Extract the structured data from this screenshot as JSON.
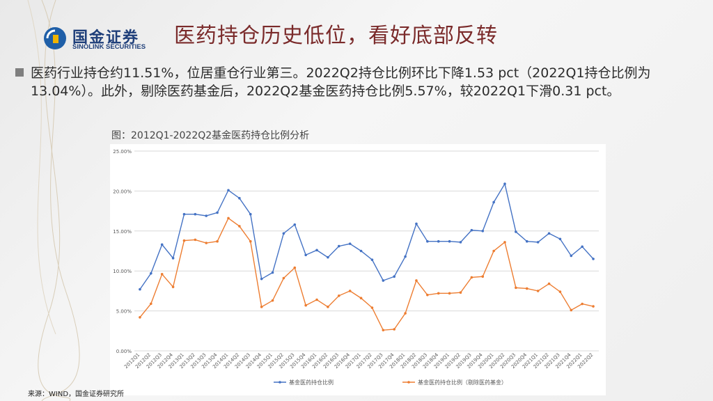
{
  "brand": {
    "name_cn": "国金证券",
    "name_en": "SINOLINK SECURITIES"
  },
  "page": {
    "title": "医药持仓历史低位，看好底部反转",
    "bullet": "医药行业持仓约11.51%，位居重仓行业第三。2022Q2持仓比例环比下降1.53 pct（2022Q1持仓比例为13.04%）。此外，剔除医药基金后，2022Q2基金医药持仓比例5.57%，较2022Q1下滑0.31 pct。",
    "figure_caption": "图：2012Q1-2022Q2基金医药持仓比例分析",
    "source": "来源：WIND，国金证券研究所"
  },
  "colors": {
    "title": "#7a2a2a",
    "series1": "#4472c4",
    "series2": "#ed7d31",
    "grid": "#d9d9d9"
  },
  "chart_data": {
    "type": "line",
    "title": "",
    "xlabel": "",
    "ylabel": "",
    "ylim": [
      0,
      25
    ],
    "yticks": [
      "0.00%",
      "5.00%",
      "10.00%",
      "15.00%",
      "20.00%",
      "25.00%"
    ],
    "grid": true,
    "legend_position": "bottom",
    "categories": [
      "2012Q1",
      "2012Q2",
      "2012Q3",
      "2012Q4",
      "2013Q1",
      "2013Q2",
      "2013Q3",
      "2013Q4",
      "2014Q1",
      "2014Q2",
      "2014Q3",
      "2014Q4",
      "2015Q1",
      "2015Q2",
      "2015Q3",
      "2015Q4",
      "2016Q1",
      "2016Q2",
      "2016Q3",
      "2016Q4",
      "2017Q1",
      "2017Q2",
      "2017Q3",
      "2017Q4",
      "2018Q1",
      "2018Q2",
      "2018Q3",
      "2018Q4",
      "2019Q1",
      "2019Q2",
      "2019Q3",
      "2019Q4",
      "2020Q1",
      "2020Q2",
      "2020Q3",
      "2020Q4",
      "2021Q1",
      "2021Q2",
      "2021Q3",
      "2021Q4",
      "2022Q1",
      "2022Q2"
    ],
    "series": [
      {
        "name": "基金医药持仓比例",
        "color": "#4472c4",
        "values": [
          7.7,
          9.7,
          13.3,
          11.6,
          17.1,
          17.1,
          16.9,
          17.3,
          20.1,
          19.1,
          17.1,
          9.0,
          9.8,
          14.7,
          15.8,
          12.0,
          12.6,
          11.7,
          13.1,
          13.4,
          12.5,
          11.4,
          8.8,
          9.3,
          11.8,
          15.9,
          13.7,
          13.7,
          13.7,
          13.6,
          15.1,
          15.0,
          18.6,
          20.9,
          14.9,
          13.7,
          13.6,
          14.7,
          14.0,
          11.9,
          13.04,
          11.51
        ]
      },
      {
        "name": "基金医药持仓比例（剔除医药基金）",
        "color": "#ed7d31",
        "values": [
          4.2,
          5.9,
          9.6,
          8.0,
          13.8,
          13.9,
          13.5,
          13.7,
          16.6,
          15.6,
          13.7,
          5.5,
          6.3,
          9.1,
          10.4,
          5.7,
          6.4,
          5.5,
          6.9,
          7.5,
          6.6,
          5.4,
          2.6,
          2.7,
          4.7,
          8.8,
          7.0,
          7.2,
          7.2,
          7.3,
          9.2,
          9.3,
          12.5,
          13.6,
          7.9,
          7.8,
          7.5,
          8.4,
          7.4,
          5.1,
          5.88,
          5.57
        ]
      }
    ]
  }
}
